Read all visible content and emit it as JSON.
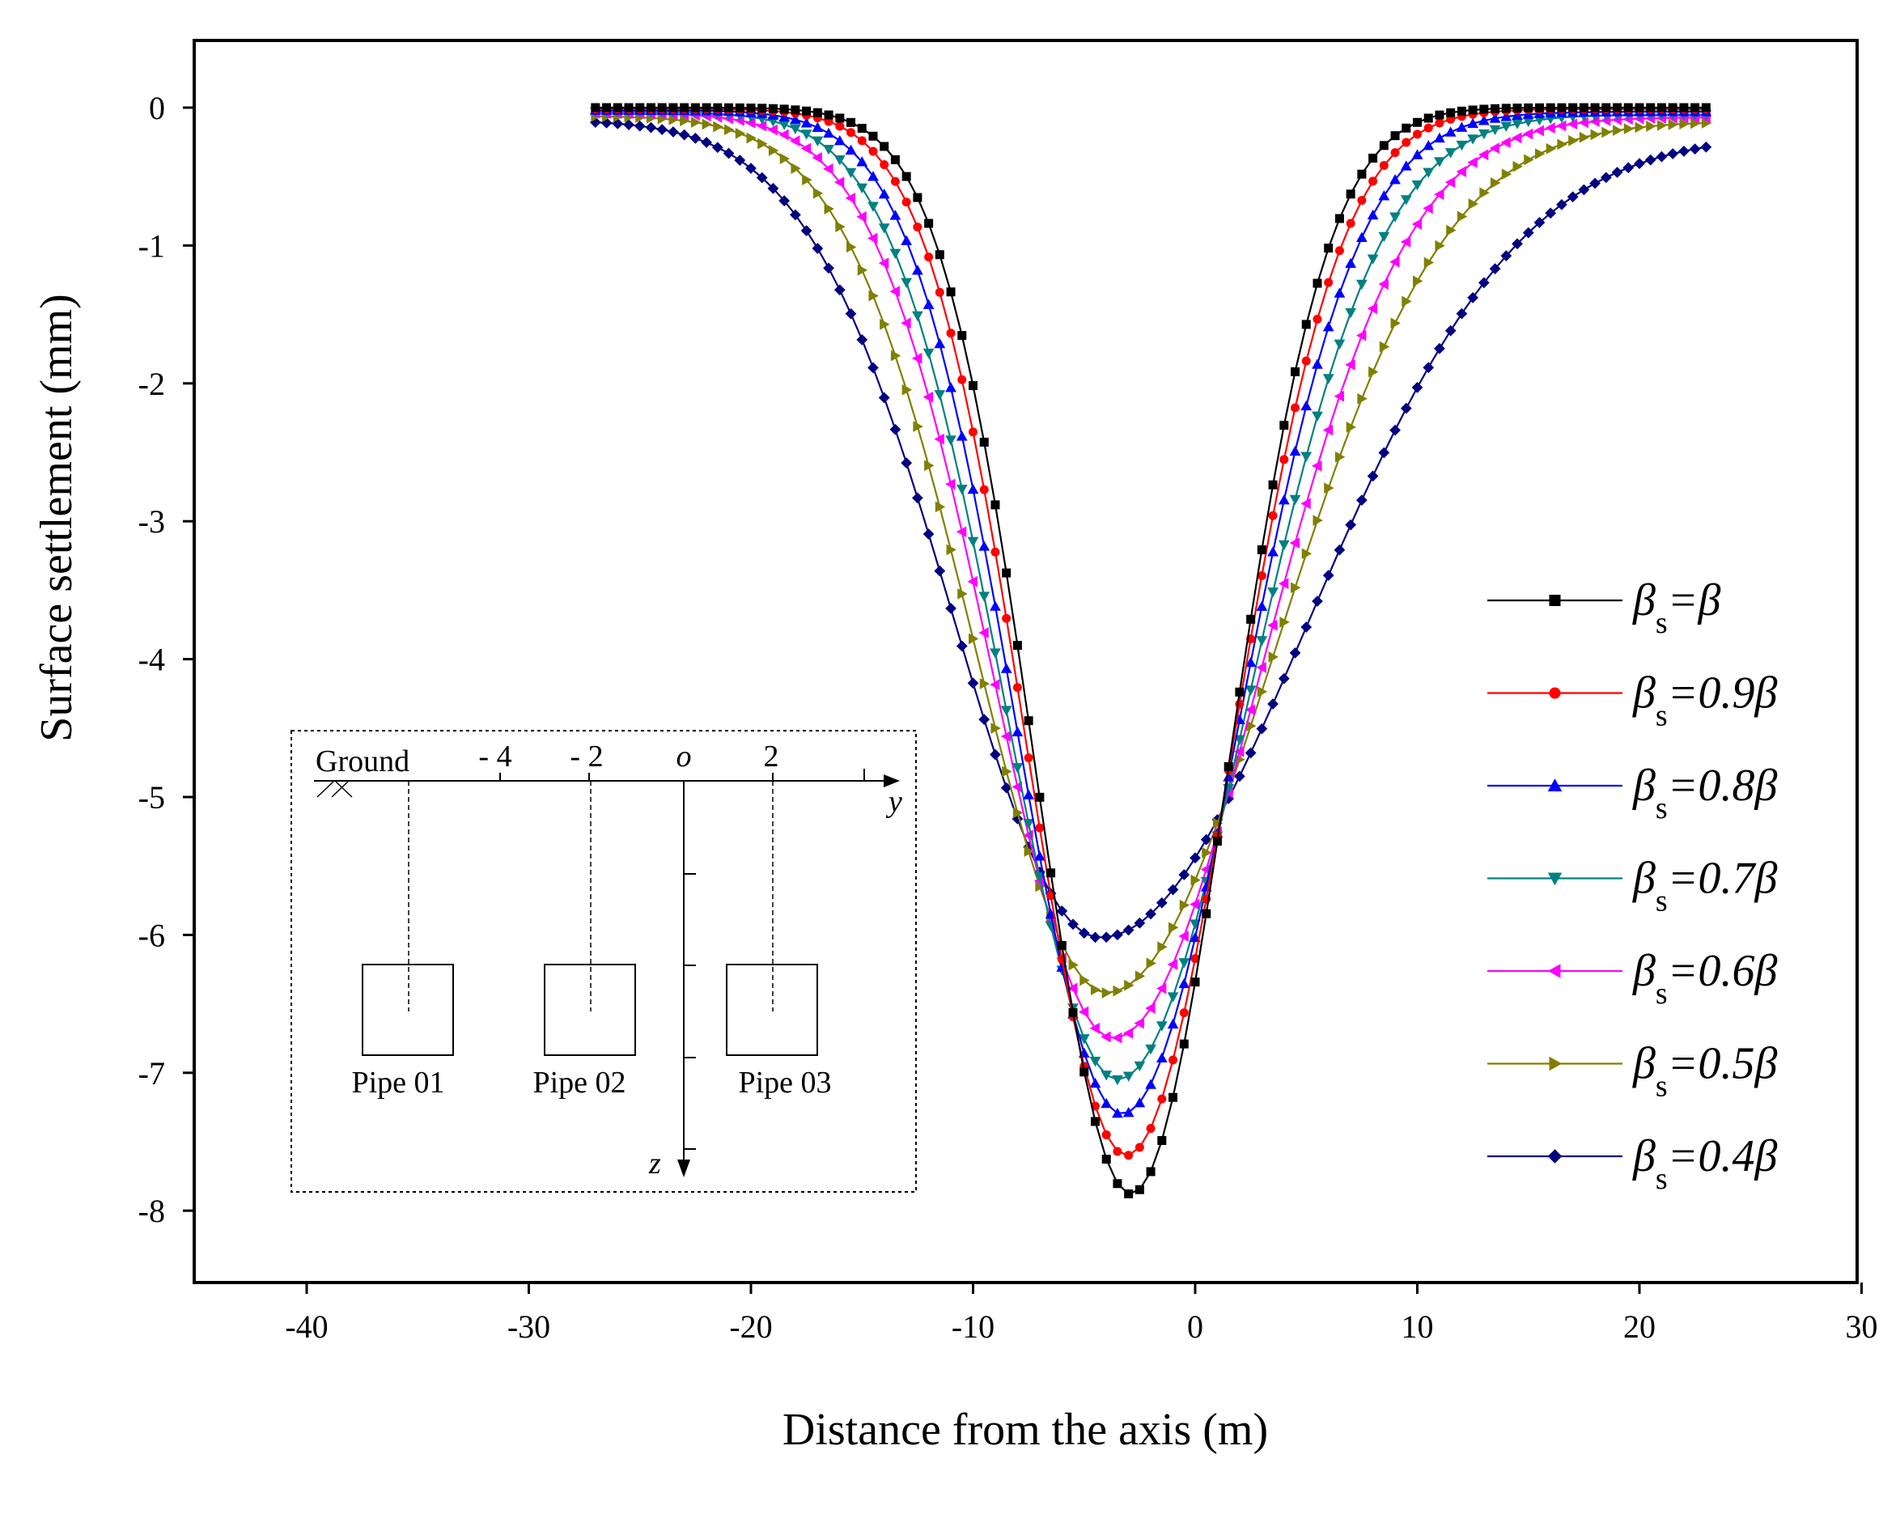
{
  "chart_data": {
    "type": "line",
    "title": "",
    "xlabel": "Distance from the axis (m)",
    "ylabel": "Surface settlement (mm)",
    "xlim": [
      -45,
      30
    ],
    "ylim": [
      -8.5,
      0.5
    ],
    "xticks": [
      -40,
      -30,
      -20,
      -10,
      0,
      10,
      20,
      30
    ],
    "xtick_labels": [
      "-40",
      "-30",
      "-20",
      "-10",
      "0",
      "10",
      "20",
      "30"
    ],
    "yticks": [
      0,
      -1,
      -2,
      -3,
      -4,
      -5,
      -6,
      -7,
      -8
    ],
    "ytick_labels": [
      "0",
      "-1",
      "-2",
      "-3",
      "-4",
      "-5",
      "-6",
      "-7",
      "-8"
    ],
    "x_start": -27,
    "x_end": 23,
    "x_step": 0.5,
    "legend_position": "right",
    "series": [
      {
        "name": "βs=β",
        "label_main": "β",
        "label_sub": "s",
        "label_rest": "=β",
        "color": "#000000",
        "marker": "square",
        "min": -7.88,
        "center": -2.9,
        "sigma_left": 4.3,
        "sigma_right": 4.4,
        "offset_left": 0.0,
        "offset_right": 0.0
      },
      {
        "name": "βs=0.9β",
        "label_main": "β",
        "label_sub": "s",
        "label_rest": "=0.9β",
        "color": "#ff0000",
        "marker": "circle",
        "min": -7.6,
        "center": -3.1,
        "sigma_left": 4.5,
        "sigma_right": 4.8,
        "offset_left": -0.01,
        "offset_right": -0.01
      },
      {
        "name": "βs=0.8β",
        "label_main": "β",
        "label_sub": "s",
        "label_rest": "=0.8β",
        "color": "#0000ff",
        "marker": "triangle-up",
        "min": -7.3,
        "center": -3.3,
        "sigma_left": 4.8,
        "sigma_right": 5.3,
        "offset_left": -0.02,
        "offset_right": -0.03
      },
      {
        "name": "βs=0.7β",
        "label_main": "β",
        "label_sub": "s",
        "label_rest": "=0.7β",
        "color": "#008080",
        "marker": "triangle-down",
        "min": -7.05,
        "center": -3.5,
        "sigma_left": 5.1,
        "sigma_right": 5.9,
        "offset_left": -0.03,
        "offset_right": -0.05
      },
      {
        "name": "βs=0.6β",
        "label_main": "β",
        "label_sub": "s",
        "label_rest": "=0.6β",
        "color": "#ff00ff",
        "marker": "triangle-left",
        "min": -6.75,
        "center": -3.7,
        "sigma_left": 5.4,
        "sigma_right": 6.6,
        "offset_left": -0.04,
        "offset_right": -0.07
      },
      {
        "name": "βs=0.5β",
        "label_main": "β",
        "label_sub": "s",
        "label_rest": "=0.5β",
        "color": "#808000",
        "marker": "triangle-right",
        "min": -6.42,
        "center": -4.0,
        "sigma_left": 5.9,
        "sigma_right": 7.6,
        "offset_left": -0.06,
        "offset_right": -0.1
      },
      {
        "name": "βs=0.4β",
        "label_main": "β",
        "label_sub": "s",
        "label_rest": "=0.4β",
        "color": "#000080",
        "marker": "diamond",
        "min": -6.02,
        "center": -4.3,
        "sigma_left": 6.6,
        "sigma_right": 9.4,
        "offset_left": -0.09,
        "offset_right": -0.2
      }
    ]
  },
  "inset": {
    "ground_label": "Ground",
    "y_axis_label": "y",
    "z_axis_label": "z",
    "origin_label": "o",
    "tick_labels": [
      "- 4",
      "- 2",
      "2"
    ],
    "pipes": [
      "Pipe 01",
      "Pipe 02",
      "Pipe 03"
    ]
  }
}
